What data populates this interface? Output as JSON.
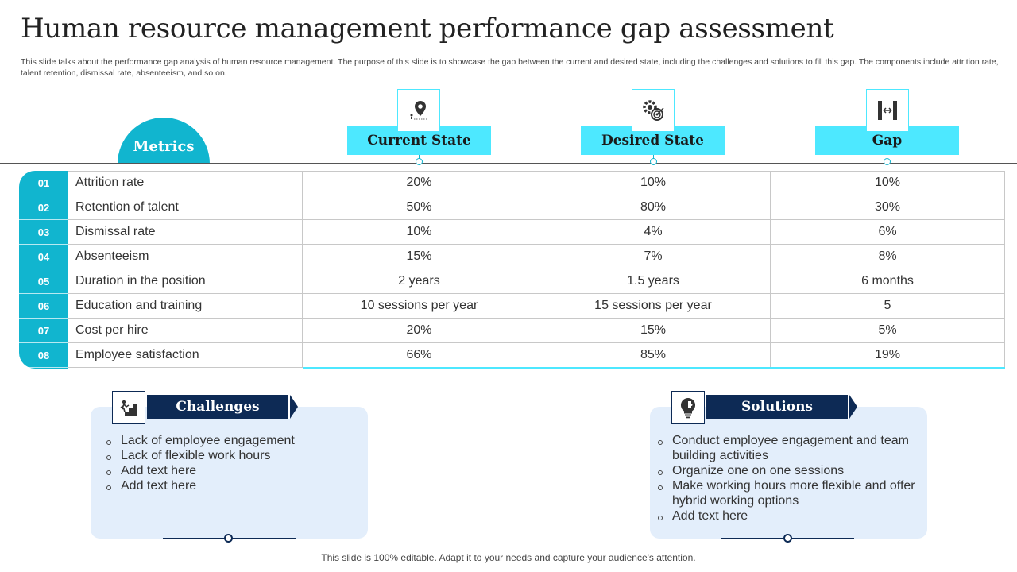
{
  "title": "Human resource management performance gap assessment",
  "subtitle": "This slide talks about the performance gap analysis of human resource management. The purpose of this slide is to showcase the gap between the current and desired state, including the challenges and solutions to fill this gap. The components include attrition rate, talent retention, dismissal rate, absenteeism, and so on.",
  "metrics_label": "Metrics",
  "columns": [
    {
      "label": "Current State",
      "icon": "location-pin-icon"
    },
    {
      "label": "Desired State",
      "icon": "gears-target-icon"
    },
    {
      "label": "Gap",
      "icon": "gap-width-icon"
    }
  ],
  "rows": [
    {
      "num": "01",
      "metric": "Attrition rate",
      "current": "20%",
      "desired": "10%",
      "gap": "10%"
    },
    {
      "num": "02",
      "metric": "Retention of talent",
      "current": "50%",
      "desired": "80%",
      "gap": "30%"
    },
    {
      "num": "03",
      "metric": "Dismissal rate",
      "current": "10%",
      "desired": "4%",
      "gap": "6%"
    },
    {
      "num": "04",
      "metric": "Absenteeism",
      "current": "15%",
      "desired": "7%",
      "gap": "8%"
    },
    {
      "num": "05",
      "metric": "Duration in the position",
      "current": "2 years",
      "desired": "1.5 years",
      "gap": "6 months"
    },
    {
      "num": "06",
      "metric": "Education and training",
      "current": "10 sessions per year",
      "desired": "15 sessions per year",
      "gap": "5"
    },
    {
      "num": "07",
      "metric": "Cost per hire",
      "current": "20%",
      "desired": "15%",
      "gap": "5%"
    },
    {
      "num": "08",
      "metric": "Employee satisfaction",
      "current": "66%",
      "desired": "85%",
      "gap": "19%"
    }
  ],
  "challenges": {
    "label": "Challenges",
    "icon": "stairs-climb-icon",
    "items": [
      "Lack of employee engagement",
      "Lack of flexible work hours",
      "Add text here",
      "Add text here"
    ]
  },
  "solutions": {
    "label": "Solutions",
    "icon": "lightbulb-puzzle-icon",
    "items": [
      "Conduct employee engagement and team building activities",
      "Organize one on one sessions",
      "Make working hours more flexible and offer hybrid working options",
      "Add text here"
    ]
  },
  "footer": "This slide is 100% editable. Adapt it to your needs and capture your audience's attention.",
  "colors": {
    "accent": "#11b5cf",
    "header_fill": "#4de8ff",
    "navy": "#0d2a55",
    "panel": "#e3eefb"
  }
}
